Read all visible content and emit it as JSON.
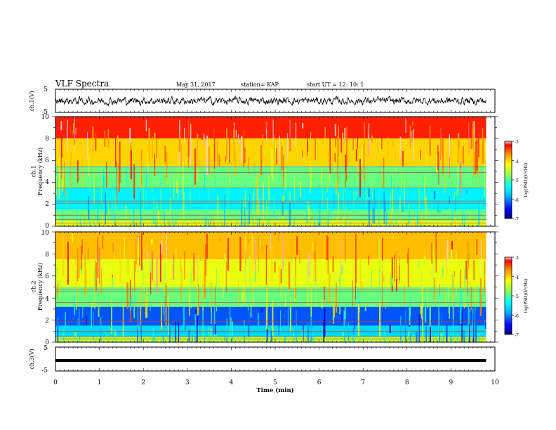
{
  "header": {
    "title": "VLF Spectra",
    "date": "May 31, 2017",
    "station": "station= KAP",
    "start": "start  UT =   12: 10: 1"
  },
  "colors": {
    "colormap": [
      "#00007f",
      "#0000ff",
      "#0080ff",
      "#00ffff",
      "#80ff80",
      "#ffff00",
      "#ff8000",
      "#ff0000",
      "#7f0000"
    ],
    "trace": "#000000",
    "frame": "#000000"
  },
  "chart_data": [
    {
      "id": "ch1-waveform",
      "type": "line",
      "ylabel": "ch.1(V)",
      "ylim": [
        -5,
        5
      ],
      "yticks": [
        "5",
        "-5"
      ],
      "xlim": [
        0,
        10
      ],
      "note": "noisy broadband waveform, roughly +/-2 V"
    },
    {
      "id": "ch1-spectrogram",
      "type": "heatmap",
      "ylabel": "ch.1\nFrequency (kHz)",
      "ylim": [
        0,
        10
      ],
      "yticks": [
        "0",
        "2",
        "4",
        "6",
        "8",
        "10"
      ],
      "xlim": [
        0,
        10
      ],
      "colorbar": {
        "label": "log(PSD)(V²/Hz)",
        "range": [
          -7,
          -3
        ],
        "ticks": [
          "-3",
          "-4",
          "-5",
          "-6",
          "-7"
        ]
      },
      "bands": [
        {
          "from_khz": 8,
          "to_khz": 10,
          "level": -3.3
        },
        {
          "from_khz": 5.5,
          "to_khz": 8,
          "level": -4.0
        },
        {
          "from_khz": 3.5,
          "to_khz": 5.5,
          "level": -4.9
        },
        {
          "from_khz": 1.5,
          "to_khz": 3.5,
          "level": -5.4
        },
        {
          "from_khz": 0.5,
          "to_khz": 1.5,
          "level": -4.9
        },
        {
          "from_khz": 0,
          "to_khz": 0.5,
          "level": -4.3
        }
      ],
      "lines_khz": [
        0.3,
        0.6,
        1.0,
        2.1,
        2.3,
        3.5,
        4.9,
        5.4
      ]
    },
    {
      "id": "ch2-spectrogram",
      "type": "heatmap",
      "ylabel": "ch.2\nFrequency (kHz)",
      "ylim": [
        0,
        10
      ],
      "yticks": [
        "0",
        "2",
        "4",
        "6",
        "8",
        "10"
      ],
      "xlim": [
        0,
        10
      ],
      "colorbar": {
        "label": "log(PSD)(V²/Hz)",
        "range": [
          -7,
          -3
        ],
        "ticks": [
          "-3",
          "-4",
          "-5",
          "-6",
          "-7"
        ]
      },
      "bands": [
        {
          "from_khz": 7.5,
          "to_khz": 10,
          "level": -3.9
        },
        {
          "from_khz": 5,
          "to_khz": 7.5,
          "level": -4.3
        },
        {
          "from_khz": 3.2,
          "to_khz": 5,
          "level": -4.9
        },
        {
          "from_khz": 1.5,
          "to_khz": 3.2,
          "level": -6.2
        },
        {
          "from_khz": 0.5,
          "to_khz": 1.5,
          "level": -5.6
        },
        {
          "from_khz": 0,
          "to_khz": 0.5,
          "level": -4.5
        }
      ],
      "lines_khz": [
        0.3,
        0.5,
        1.0,
        1.9,
        3.6,
        4.6,
        4.8
      ]
    },
    {
      "id": "ch3-waveform",
      "type": "line",
      "ylabel": "ch.3(V)",
      "ylim": [
        -5,
        5
      ],
      "yticks": [
        "5",
        "-5"
      ],
      "xlim": [
        0,
        10
      ],
      "xlabel": "Time  (min)",
      "xticks": [
        "0",
        "1",
        "2",
        "3",
        "4",
        "5",
        "6",
        "7",
        "8",
        "9",
        "10"
      ],
      "y_constant": -0.6,
      "data_end_min": 9.8
    }
  ]
}
